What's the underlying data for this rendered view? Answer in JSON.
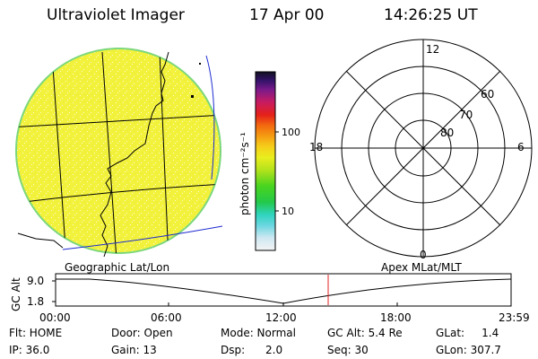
{
  "header": {
    "title": "Ultraviolet Imager",
    "date": "17 Apr 00",
    "time": "14:26:25 UT"
  },
  "colorbar": {
    "unit_label": "photon cm⁻²s⁻¹",
    "ticks": [
      "100",
      "10"
    ]
  },
  "polar_plot": {
    "mlt_labels": {
      "top": "12",
      "left": "18",
      "right": "6",
      "bottom": "0"
    },
    "lat_labels": [
      "60",
      "70",
      "80"
    ]
  },
  "timeline": {
    "left_label": "Geographic Lat/Lon",
    "right_label": "Apex MLat/MLT",
    "axis_label": "GC Alt",
    "y_ticks": [
      "9.0",
      "1.8"
    ],
    "x_ticks": [
      "00:00",
      "06:00",
      "12:00",
      "18:00",
      "23:59"
    ]
  },
  "info": {
    "row1": [
      {
        "key": "filter",
        "text": "Flt: HOME"
      },
      {
        "key": "door",
        "text": "Door: Open"
      },
      {
        "key": "mode",
        "text": "Mode: Normal"
      },
      {
        "key": "gcalt",
        "text": "GC Alt: 5.4 Re"
      },
      {
        "key": "glat",
        "text": "GLat:     1.4"
      }
    ],
    "row2": [
      {
        "key": "ip",
        "text": "IP: 36.0"
      },
      {
        "key": "gain",
        "text": "Gain: 13"
      },
      {
        "key": "dsp",
        "text": "Dsp:      2.0"
      },
      {
        "key": "seq",
        "text": "Seq: 30"
      },
      {
        "key": "glon",
        "text": "GLon: 307.7"
      }
    ]
  },
  "colors": {
    "disk": "#f2f23c",
    "limb": "#7cd77c",
    "marker": "#e02020"
  }
}
